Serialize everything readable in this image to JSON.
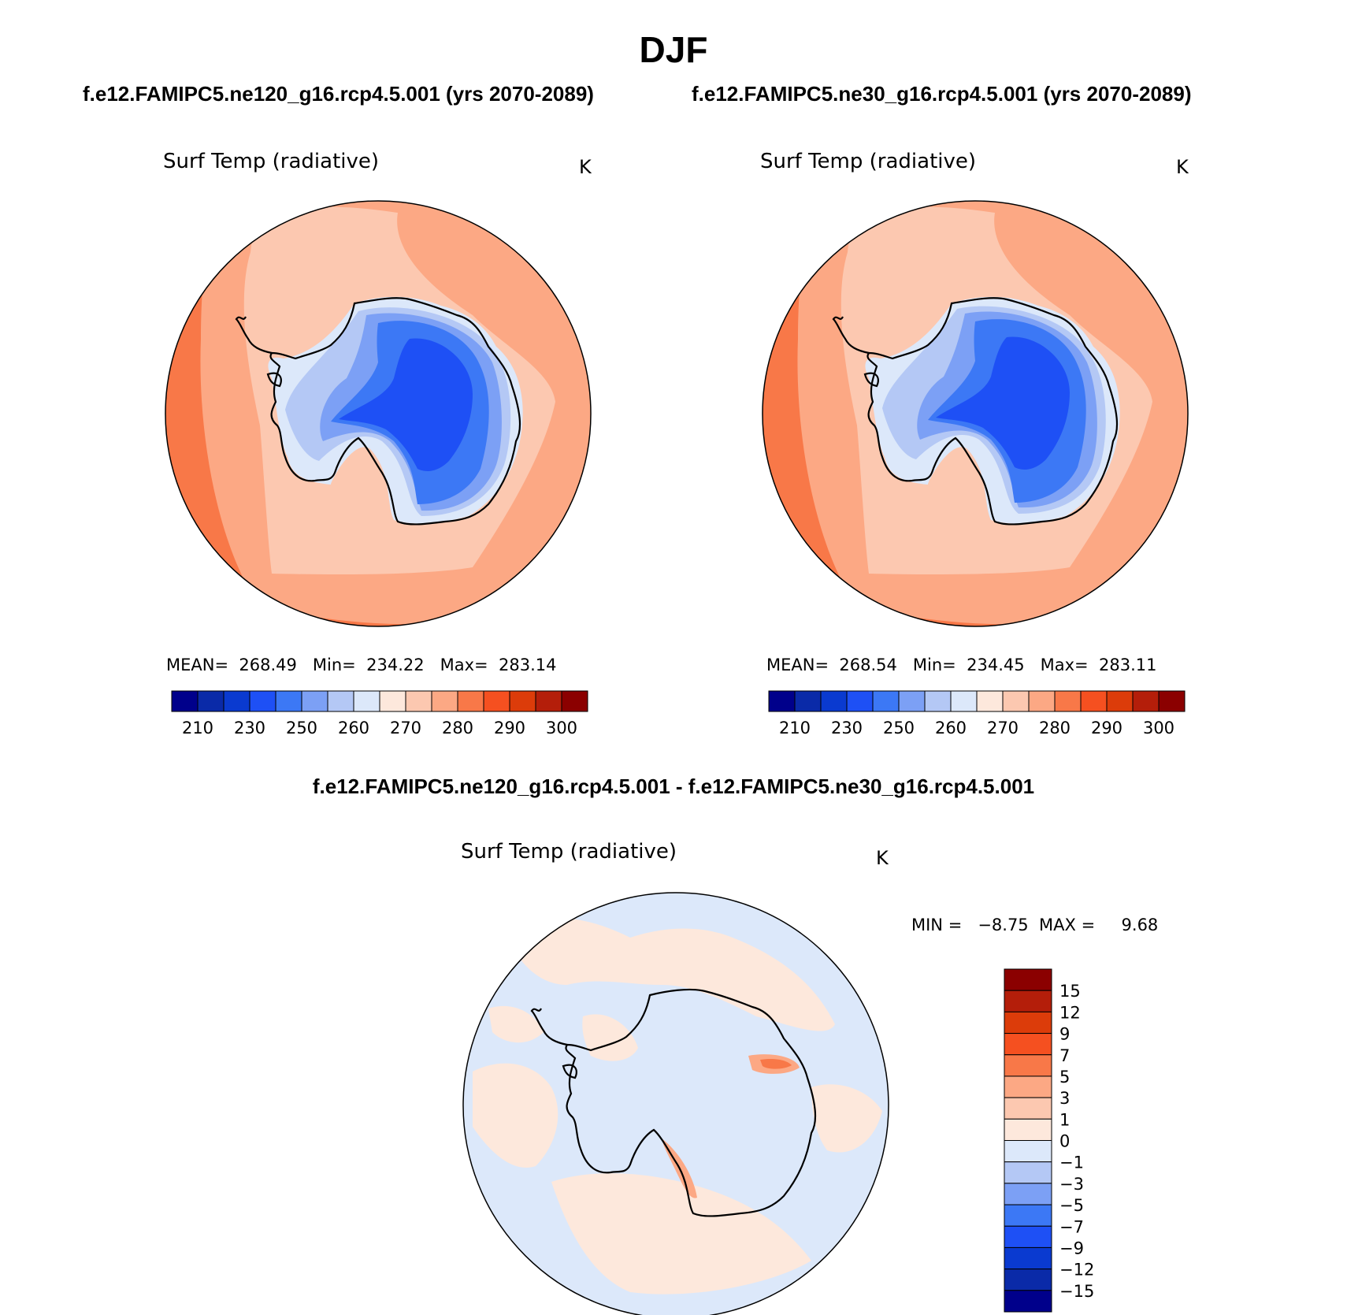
{
  "figure": {
    "season": "DJF",
    "top_left_title": "f.e12.FAMIPC5.ne120_g16.rcp4.5.001 (yrs 2070-2089)",
    "top_right_title": "f.e12.FAMIPC5.ne30_g16.rcp4.5.001 (yrs 2070-2089)",
    "bottom_title": "f.e12.FAMIPC5.ne120_g16.rcp4.5.001 - f.e12.FAMIPC5.ne30_g16.rcp4.5.001"
  },
  "panels": [
    {
      "id": "ne120",
      "variable": "Surf Temp (radiative)",
      "units": "K",
      "stats": "MEAN=  268.49   Min=  234.22   Max=  283.14"
    },
    {
      "id": "ne30",
      "variable": "Surf Temp (radiative)",
      "units": "K",
      "stats": "MEAN=  268.54   Min=  234.45   Max=  283.11"
    },
    {
      "id": "diff",
      "variable": "Surf Temp (radiative)",
      "units": "K",
      "stats": "MIN =   −8.75  MAX =     9.68"
    }
  ],
  "colorbars": {
    "absolute": {
      "colors": [
        "#00008b",
        "#0a2aa8",
        "#0a3ad0",
        "#1e50f5",
        "#3c78f5",
        "#7ca0f5",
        "#b4c8f5",
        "#dce8fa",
        "#fde8dc",
        "#fcc8b0",
        "#fca884",
        "#f87848",
        "#f55020",
        "#dc3c0a",
        "#b41e0a",
        "#8b0000"
      ],
      "tick_labels": [
        "210",
        "230",
        "250",
        "260",
        "270",
        "280",
        "290",
        "300"
      ]
    },
    "difference": {
      "colors": [
        "#00008b",
        "#0a2aa8",
        "#0a3ad0",
        "#1e50f5",
        "#3c78f5",
        "#7ca0f5",
        "#b4c8f5",
        "#dce8fa",
        "#fde8dc",
        "#fcc8b0",
        "#fca884",
        "#f87848",
        "#f55020",
        "#dc3c0a",
        "#b41e0a",
        "#8b0000"
      ],
      "tick_labels": [
        "−15",
        "−12",
        "−9",
        "−7",
        "−5",
        "−3",
        "−1",
        "0",
        "1",
        "3",
        "5",
        "7",
        "9",
        "12",
        "15"
      ]
    }
  },
  "map_colors": {
    "warm_ring": "#f87848",
    "warm_outer": "#fca884",
    "warm_inner": "#fcc8b0",
    "ice_edge": "#dce8fa",
    "ice_1": "#b4c8f5",
    "ice_2": "#7ca0f5",
    "ice_3": "#3c78f5",
    "ice_4": "#1e50f5",
    "diff_neg": "#dce8fa",
    "diff_pos": "#fde8dc",
    "diff_hot": "#f87848",
    "coast": "#000000"
  }
}
